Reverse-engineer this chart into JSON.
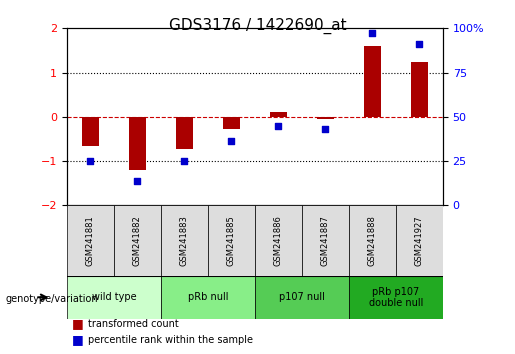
{
  "title": "GDS3176 / 1422690_at",
  "samples": [
    "GSM241881",
    "GSM241882",
    "GSM241883",
    "GSM241885",
    "GSM241886",
    "GSM241887",
    "GSM241888",
    "GSM241927"
  ],
  "bar_values": [
    -0.65,
    -1.2,
    -0.72,
    -0.28,
    0.12,
    -0.05,
    1.6,
    1.25
  ],
  "dot_values": [
    -1.0,
    -1.45,
    -1.0,
    -0.55,
    -0.2,
    -0.28,
    1.9,
    1.65
  ],
  "groups": [
    {
      "label": "wild type",
      "start": 0,
      "end": 2,
      "color": "#ccffcc"
    },
    {
      "label": "pRb null",
      "start": 2,
      "end": 4,
      "color": "#88ee88"
    },
    {
      "label": "p107 null",
      "start": 4,
      "end": 6,
      "color": "#55cc55"
    },
    {
      "label": "pRb p107\ndouble null",
      "start": 6,
      "end": 8,
      "color": "#22aa22"
    }
  ],
  "bar_color": "#aa0000",
  "dot_color": "#0000cc",
  "ylim": [
    -2,
    2
  ],
  "y2lim": [
    0,
    100
  ],
  "yticks_left": [
    -2,
    -1,
    0,
    1,
    2
  ],
  "yticks_right": [
    0,
    25,
    50,
    75,
    100
  ],
  "hline_color": "#cc0000",
  "dotline_color": "black",
  "bg_color": "#ffffff",
  "legend_red": "transformed count",
  "legend_blue": "percentile rank within the sample",
  "genotype_label": "genotype/variation"
}
